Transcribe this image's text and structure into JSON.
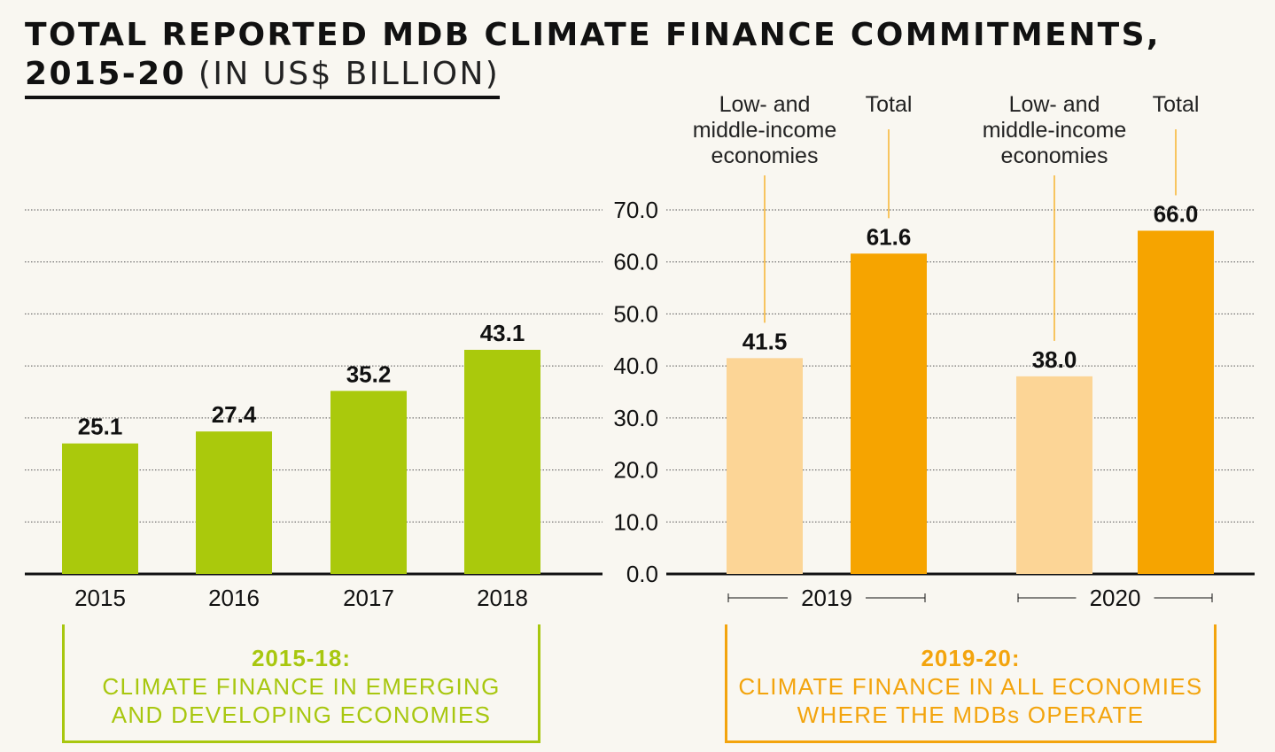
{
  "title": {
    "line1": "TOTAL REPORTED MDB CLIMATE FINANCE COMMITMENTS,",
    "line2_bold": "2015-20",
    "line2_light": " (IN US$ BILLION)"
  },
  "colors": {
    "green": "#aac90c",
    "light_orange": "#fcd596",
    "orange": "#f6a400",
    "axis": "#111111",
    "grid": "#555555"
  },
  "chart_data": {
    "type": "bar",
    "y_ticks": [
      "70.0",
      "60.0",
      "50.0",
      "40.0",
      "30.0",
      "20.0",
      "10.0",
      "0.0"
    ],
    "ylim": [
      0,
      70
    ],
    "left_panel": {
      "categories": [
        "2015",
        "2016",
        "2017",
        "2018"
      ],
      "values": [
        25.1,
        27.4,
        35.2,
        43.1
      ],
      "labels": [
        "25.1",
        "27.4",
        "35.2",
        "43.1"
      ]
    },
    "right_panel": {
      "groups": [
        {
          "year": "2019",
          "bars": [
            {
              "series": "low_mid",
              "value": 41.5,
              "label": "41.5"
            },
            {
              "series": "total",
              "value": 61.6,
              "label": "61.6"
            }
          ]
        },
        {
          "year": "2020",
          "bars": [
            {
              "series": "low_mid",
              "value": 38.0,
              "label": "38.0"
            },
            {
              "series": "total",
              "value": 66.0,
              "label": "66.0"
            }
          ]
        }
      ],
      "series_names": {
        "low_mid": [
          "Low- and",
          "middle-income",
          "economies"
        ],
        "total": [
          "Total"
        ]
      }
    }
  },
  "boxes": {
    "left": {
      "heading": "2015-18:",
      "line1": "CLIMATE FINANCE IN EMERGING",
      "line2": "AND DEVELOPING ECONOMIES"
    },
    "right": {
      "heading": "2019-20:",
      "line1": "CLIMATE FINANCE IN ALL ECONOMIES",
      "line2": "WHERE THE MDBs OPERATE"
    }
  }
}
